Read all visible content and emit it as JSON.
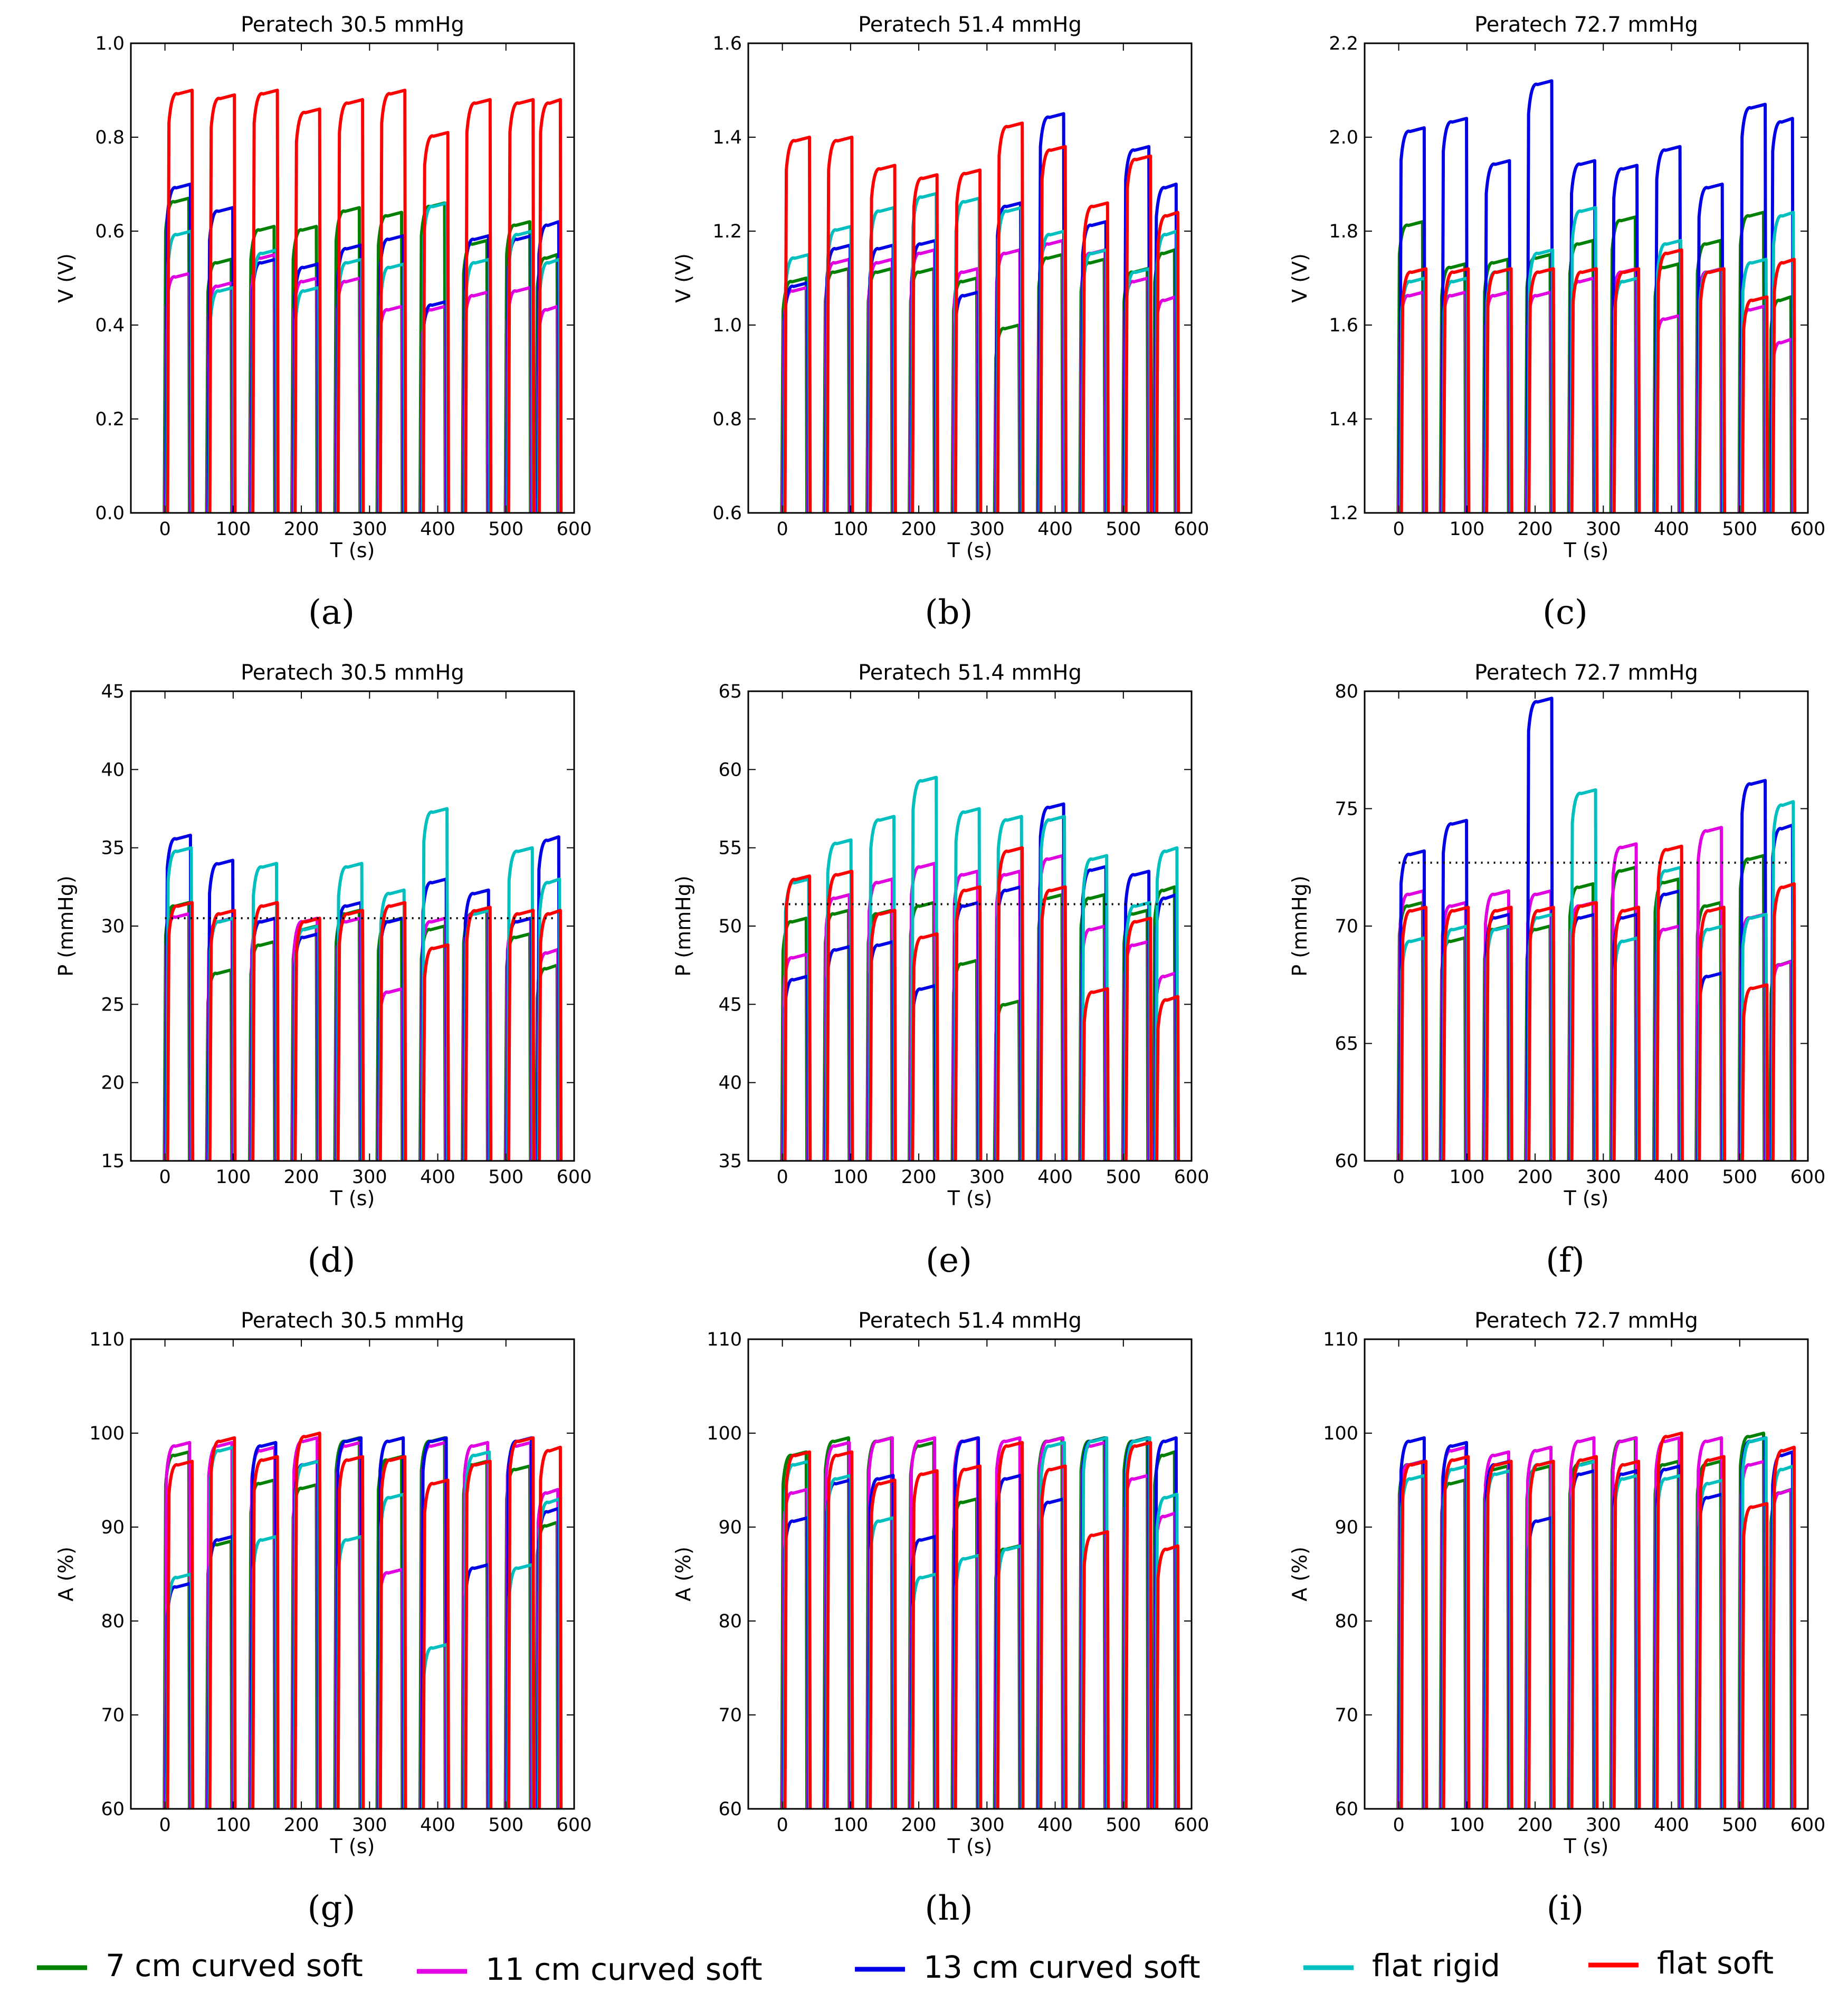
{
  "figure": {
    "legend": [
      {
        "label": "7 cm curved soft",
        "color": "#008000"
      },
      {
        "label": "11  cm curved soft",
        "color": "#e000e0"
      },
      {
        "label": "13 cm curved soft",
        "color": "#0000e6"
      },
      {
        "label": "flat rigid",
        "color": "#00bfbf"
      },
      {
        "label": "flat soft",
        "color": "#ff0000"
      }
    ]
  },
  "chart_data": [
    {
      "id": "a",
      "caption": "(a)",
      "type": "line",
      "title": "Peratech 30.5 mmHg",
      "xlabel": "T (s)",
      "ylabel": "V (V)",
      "xlim": [
        -50,
        600
      ],
      "ylim": [
        0.0,
        1.0
      ],
      "xticks": [
        "0",
        "100",
        "200",
        "300",
        "400",
        "500",
        "600"
      ],
      "yticks": [
        "0.0",
        "0.2",
        "0.4",
        "0.6",
        "0.8",
        "1.0"
      ],
      "reference_line": null,
      "series": [
        {
          "name": "7 cm curved soft",
          "color": "#008000",
          "plateaus": [
            0.67,
            0.54,
            0.61,
            0.61,
            0.65,
            0.64,
            0.66,
            0.58,
            0.62,
            0.55
          ]
        },
        {
          "name": "11  cm curved soft",
          "color": "#e000e0",
          "plateaus": [
            0.51,
            0.49,
            0.55,
            0.5,
            0.5,
            0.44,
            0.44,
            0.47,
            0.48,
            0.44
          ]
        },
        {
          "name": "13 cm curved soft",
          "color": "#0000e6",
          "plateaus": [
            0.7,
            0.65,
            0.54,
            0.53,
            0.57,
            0.59,
            0.45,
            0.59,
            0.59,
            0.62
          ]
        },
        {
          "name": "flat rigid",
          "color": "#00bfbf",
          "plateaus": [
            0.6,
            0.48,
            0.56,
            0.48,
            0.54,
            0.53,
            0.66,
            0.54,
            0.6,
            0.54
          ]
        },
        {
          "name": "flat soft",
          "color": "#ff0000",
          "plateaus": [
            0.9,
            0.89,
            0.9,
            0.86,
            0.88,
            0.9,
            0.81,
            0.88,
            0.88,
            0.88
          ]
        }
      ]
    },
    {
      "id": "b",
      "caption": "(b)",
      "type": "line",
      "title": "Peratech 51.4 mmHg",
      "xlabel": "T (s)",
      "ylabel": "V (V)",
      "xlim": [
        -50,
        600
      ],
      "ylim": [
        0.6,
        1.6
      ],
      "xticks": [
        "0",
        "100",
        "200",
        "300",
        "400",
        "500",
        "600"
      ],
      "yticks": [
        "0.6",
        "0.8",
        "1.0",
        "1.2",
        "1.4",
        "1.6"
      ],
      "reference_line": null,
      "series": [
        {
          "name": "7 cm curved soft",
          "color": "#008000",
          "plateaus": [
            1.1,
            1.12,
            1.12,
            1.12,
            1.1,
            1.0,
            1.15,
            1.14,
            1.12,
            1.16
          ]
        },
        {
          "name": "11  cm curved soft",
          "color": "#e000e0",
          "plateaus": [
            1.08,
            1.14,
            1.14,
            1.16,
            1.12,
            1.16,
            1.18,
            1.16,
            1.1,
            1.06
          ]
        },
        {
          "name": "13 cm curved soft",
          "color": "#0000e6",
          "plateaus": [
            1.09,
            1.17,
            1.17,
            1.18,
            1.07,
            1.26,
            1.45,
            1.22,
            1.38,
            1.3
          ]
        },
        {
          "name": "flat rigid",
          "color": "#00bfbf",
          "plateaus": [
            1.15,
            1.21,
            1.25,
            1.28,
            1.27,
            1.25,
            1.2,
            1.16,
            1.12,
            1.2
          ]
        },
        {
          "name": "flat soft",
          "color": "#ff0000",
          "plateaus": [
            1.4,
            1.4,
            1.34,
            1.32,
            1.33,
            1.43,
            1.38,
            1.26,
            1.36,
            1.24
          ]
        }
      ]
    },
    {
      "id": "c",
      "caption": "(c)",
      "type": "line",
      "title": "Peratech 72.7 mmHg",
      "xlabel": "T (s)",
      "ylabel": "V (V)",
      "xlim": [
        -50,
        600
      ],
      "ylim": [
        1.2,
        2.2
      ],
      "xticks": [
        "0",
        "100",
        "200",
        "300",
        "400",
        "500",
        "600"
      ],
      "yticks": [
        "1.2",
        "1.4",
        "1.6",
        "1.8",
        "2.0",
        "2.2"
      ],
      "reference_line": null,
      "series": [
        {
          "name": "7 cm curved soft",
          "color": "#008000",
          "plateaus": [
            1.82,
            1.73,
            1.74,
            1.75,
            1.78,
            1.83,
            1.73,
            1.78,
            1.84,
            1.66
          ]
        },
        {
          "name": "11  cm curved soft",
          "color": "#e000e0",
          "plateaus": [
            1.67,
            1.67,
            1.67,
            1.67,
            1.7,
            1.72,
            1.62,
            1.72,
            1.64,
            1.57
          ]
        },
        {
          "name": "13 cm curved soft",
          "color": "#0000e6",
          "plateaus": [
            2.02,
            2.04,
            1.95,
            2.12,
            1.95,
            1.94,
            1.98,
            1.9,
            2.07,
            2.04
          ]
        },
        {
          "name": "flat rigid",
          "color": "#00bfbf",
          "plateaus": [
            1.7,
            1.7,
            1.72,
            1.76,
            1.85,
            1.7,
            1.78,
            1.72,
            1.74,
            1.84
          ]
        },
        {
          "name": "flat soft",
          "color": "#ff0000",
          "plateaus": [
            1.72,
            1.72,
            1.72,
            1.72,
            1.72,
            1.72,
            1.76,
            1.72,
            1.66,
            1.74
          ]
        }
      ]
    },
    {
      "id": "d",
      "caption": "(d)",
      "type": "line",
      "title": "Peratech 30.5 mmHg",
      "xlabel": "T (s)",
      "ylabel": "P (mmHg)",
      "xlim": [
        -50,
        600
      ],
      "ylim": [
        15,
        45
      ],
      "xticks": [
        "0",
        "100",
        "200",
        "300",
        "400",
        "500",
        "600"
      ],
      "yticks": [
        "15",
        "20",
        "25",
        "30",
        "35",
        "40",
        "45"
      ],
      "reference_line": 30.5,
      "series": [
        {
          "name": "7 cm curved soft",
          "color": "#008000",
          "plateaus": [
            31.5,
            27.2,
            29.0,
            30.0,
            31.0,
            30.5,
            30.0,
            31.0,
            29.5,
            27.5
          ]
        },
        {
          "name": "11  cm curved soft",
          "color": "#e000e0",
          "plateaus": [
            30.8,
            30.5,
            30.5,
            30.5,
            30.5,
            26.0,
            30.5,
            31.0,
            30.5,
            28.5
          ]
        },
        {
          "name": "13 cm curved soft",
          "color": "#0000e6",
          "plateaus": [
            35.8,
            34.2,
            30.5,
            29.5,
            31.5,
            30.5,
            33.0,
            32.3,
            30.5,
            35.7
          ]
        },
        {
          "name": "flat rigid",
          "color": "#00bfbf",
          "plateaus": [
            35.0,
            30.5,
            34.0,
            30.0,
            34.0,
            32.3,
            37.5,
            31.0,
            35.0,
            33.0
          ]
        },
        {
          "name": "flat soft",
          "color": "#ff0000",
          "plateaus": [
            31.5,
            31.0,
            31.5,
            30.5,
            31.0,
            31.5,
            28.8,
            31.2,
            31.0,
            31.0
          ]
        }
      ]
    },
    {
      "id": "e",
      "caption": "(e)",
      "type": "line",
      "title": "Peratech 51.4 mmHg",
      "xlabel": "T (s)",
      "ylabel": "P (mmHg)",
      "xlim": [
        -50,
        600
      ],
      "ylim": [
        35,
        65
      ],
      "xticks": [
        "0",
        "100",
        "200",
        "300",
        "400",
        "500",
        "600"
      ],
      "yticks": [
        "35",
        "40",
        "45",
        "50",
        "55",
        "60",
        "65"
      ],
      "reference_line": 51.4,
      "series": [
        {
          "name": "7 cm curved soft",
          "color": "#008000",
          "plateaus": [
            50.5,
            51.0,
            51.0,
            51.5,
            47.8,
            45.2,
            52.0,
            52.0,
            51.0,
            52.5
          ]
        },
        {
          "name": "11  cm curved soft",
          "color": "#e000e0",
          "plateaus": [
            48.2,
            52.0,
            53.0,
            54.0,
            53.5,
            53.5,
            54.5,
            50.0,
            49.0,
            47.0
          ]
        },
        {
          "name": "13 cm curved soft",
          "color": "#0000e6",
          "plateaus": [
            46.8,
            48.7,
            49.0,
            46.2,
            51.5,
            52.5,
            57.8,
            53.8,
            53.5,
            52.0
          ]
        },
        {
          "name": "flat rigid",
          "color": "#00bfbf",
          "plateaus": [
            53.0,
            55.5,
            57.0,
            59.5,
            57.5,
            57.0,
            57.0,
            54.5,
            51.5,
            55.0
          ]
        },
        {
          "name": "flat soft",
          "color": "#ff0000",
          "plateaus": [
            53.2,
            53.5,
            51.0,
            49.5,
            52.5,
            55.0,
            52.5,
            46.0,
            50.5,
            45.5
          ]
        }
      ]
    },
    {
      "id": "f",
      "caption": "(f)",
      "type": "line",
      "title": "Peratech 72.7 mmHg",
      "xlabel": "T (s)",
      "ylabel": "P (mmHg)",
      "xlim": [
        -50,
        600
      ],
      "ylim": [
        60,
        80
      ],
      "xticks": [
        "0",
        "100",
        "200",
        "300",
        "400",
        "500",
        "600"
      ],
      "yticks": [
        "60",
        "65",
        "70",
        "75",
        "80"
      ],
      "reference_line": 72.7,
      "series": [
        {
          "name": "7 cm curved soft",
          "color": "#008000",
          "plateaus": [
            71.0,
            69.5,
            70.0,
            70.0,
            71.8,
            72.5,
            72.0,
            71.0,
            73.0,
            68.5
          ]
        },
        {
          "name": "11  cm curved soft",
          "color": "#e000e0",
          "plateaus": [
            71.5,
            71.0,
            71.5,
            71.5,
            71.0,
            73.5,
            70.0,
            74.2,
            70.5,
            68.5
          ]
        },
        {
          "name": "13 cm curved soft",
          "color": "#0000e6",
          "plateaus": [
            73.2,
            74.5,
            70.5,
            79.7,
            70.5,
            70.5,
            71.5,
            68.0,
            76.2,
            74.3
          ]
        },
        {
          "name": "flat rigid",
          "color": "#00bfbf",
          "plateaus": [
            69.5,
            70.0,
            70.0,
            70.5,
            75.8,
            69.5,
            72.5,
            70.0,
            70.5,
            75.3
          ]
        },
        {
          "name": "flat soft",
          "color": "#ff0000",
          "plateaus": [
            70.8,
            70.8,
            70.8,
            70.8,
            71.0,
            70.8,
            73.4,
            70.8,
            67.5,
            71.8
          ]
        }
      ]
    },
    {
      "id": "g",
      "caption": "(g)",
      "type": "line",
      "title": "Peratech 30.5 mmHg",
      "xlabel": "T (s)",
      "ylabel": "A (%)",
      "xlim": [
        -50,
        600
      ],
      "ylim": [
        60,
        110
      ],
      "xticks": [
        "0",
        "100",
        "200",
        "300",
        "400",
        "500",
        "600"
      ],
      "yticks": [
        "60",
        "70",
        "80",
        "90",
        "100",
        "110"
      ],
      "reference_line": null,
      "series": [
        {
          "name": "7 cm curved soft",
          "color": "#008000",
          "plateaus": [
            98.0,
            88.5,
            95.0,
            94.5,
            99.5,
            97.5,
            99.5,
            97.0,
            96.5,
            90.5
          ]
        },
        {
          "name": "11  cm curved soft",
          "color": "#e000e0",
          "plateaus": [
            99.0,
            99.0,
            98.5,
            99.5,
            99.0,
            85.5,
            99.0,
            99.0,
            99.0,
            94.0
          ]
        },
        {
          "name": "13 cm curved soft",
          "color": "#0000e6",
          "plateaus": [
            84.0,
            89.0,
            99.0,
            97.0,
            99.5,
            99.5,
            99.5,
            86.0,
            99.5,
            92.0
          ]
        },
        {
          "name": "flat rigid",
          "color": "#00bfbf",
          "plateaus": [
            85.0,
            98.5,
            89.0,
            97.0,
            89.0,
            93.5,
            77.5,
            98.0,
            86.0,
            93.0
          ]
        },
        {
          "name": "flat soft",
          "color": "#ff0000",
          "plateaus": [
            97.0,
            99.5,
            97.5,
            100.0,
            97.5,
            97.5,
            95.0,
            97.0,
            99.5,
            98.5
          ]
        }
      ]
    },
    {
      "id": "h",
      "caption": "(h)",
      "type": "line",
      "title": "Peratech 51.4 mmHg",
      "xlabel": "T (s)",
      "ylabel": "A (%)",
      "xlim": [
        -50,
        600
      ],
      "ylim": [
        60,
        110
      ],
      "xticks": [
        "0",
        "100",
        "200",
        "300",
        "400",
        "500",
        "600"
      ],
      "yticks": [
        "60",
        "70",
        "80",
        "90",
        "100",
        "110"
      ],
      "reference_line": null,
      "series": [
        {
          "name": "7 cm curved soft",
          "color": "#008000",
          "plateaus": [
            98.0,
            99.5,
            99.5,
            99.0,
            93.0,
            88.0,
            99.5,
            99.5,
            99.5,
            98.0
          ]
        },
        {
          "name": "11  cm curved soft",
          "color": "#e000e0",
          "plateaus": [
            94.0,
            99.0,
            99.5,
            99.5,
            99.5,
            99.5,
            99.5,
            99.0,
            95.5,
            91.5
          ]
        },
        {
          "name": "13 cm curved soft",
          "color": "#0000e6",
          "plateaus": [
            91.0,
            95.0,
            95.5,
            89.0,
            99.5,
            95.5,
            93.0,
            99.5,
            99.5,
            99.5
          ]
        },
        {
          "name": "flat rigid",
          "color": "#00bfbf",
          "plateaus": [
            97.0,
            95.5,
            91.0,
            85.0,
            87.0,
            88.0,
            99.0,
            99.5,
            99.5,
            93.5
          ]
        },
        {
          "name": "flat soft",
          "color": "#ff0000",
          "plateaus": [
            98.0,
            98.0,
            95.0,
            96.0,
            96.5,
            99.0,
            96.5,
            89.5,
            99.0,
            88.0
          ]
        }
      ]
    },
    {
      "id": "i",
      "caption": "(i)",
      "type": "line",
      "title": "Peratech 72.7 mmHg",
      "xlabel": "T (s)",
      "ylabel": "A (%)",
      "xlim": [
        -50,
        600
      ],
      "ylim": [
        60,
        110
      ],
      "xticks": [
        "0",
        "100",
        "200",
        "300",
        "400",
        "500",
        "600"
      ],
      "yticks": [
        "60",
        "70",
        "80",
        "90",
        "100",
        "110"
      ],
      "reference_line": null,
      "series": [
        {
          "name": "7 cm curved soft",
          "color": "#008000",
          "plateaus": [
            97.0,
            95.0,
            96.5,
            96.5,
            97.0,
            99.5,
            97.0,
            97.0,
            100.0,
            94.0
          ]
        },
        {
          "name": "11  cm curved soft",
          "color": "#e000e0",
          "plateaus": [
            97.0,
            98.5,
            98.0,
            98.5,
            99.5,
            99.5,
            99.5,
            99.5,
            97.0,
            94.0
          ]
        },
        {
          "name": "13 cm curved soft",
          "color": "#0000e6",
          "plateaus": [
            99.5,
            99.0,
            97.0,
            91.0,
            96.0,
            96.0,
            96.5,
            93.5,
            99.5,
            98.0
          ]
        },
        {
          "name": "flat rigid",
          "color": "#00bfbf",
          "plateaus": [
            95.5,
            96.5,
            96.0,
            97.0,
            97.0,
            95.5,
            95.5,
            95.0,
            99.5,
            96.5
          ]
        },
        {
          "name": "flat soft",
          "color": "#ff0000",
          "plateaus": [
            97.0,
            97.5,
            97.0,
            97.0,
            97.5,
            97.0,
            100.0,
            97.5,
            92.5,
            98.5
          ]
        }
      ]
    }
  ]
}
